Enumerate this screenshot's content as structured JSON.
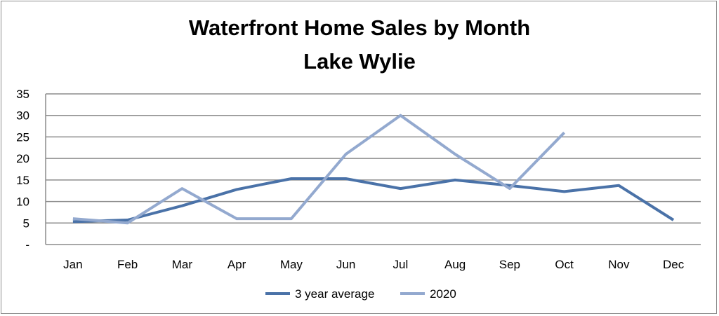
{
  "chart_data": {
    "type": "line",
    "title": "Waterfront Home Sales by Month",
    "subtitle": "Lake Wylie",
    "categories": [
      "Jan",
      "Feb",
      "Mar",
      "Apr",
      "May",
      "Jun",
      "Jul",
      "Aug",
      "Sep",
      "Oct",
      "Nov",
      "Dec"
    ],
    "y_tick_labels": [
      "-",
      "5",
      "10",
      "15",
      "20",
      "25",
      "30",
      "35"
    ],
    "ylim": [
      0,
      35
    ],
    "grid": true,
    "legend_position": "bottom",
    "series": [
      {
        "name": "3 year average",
        "color": "#4a72a8",
        "values": [
          5.3,
          5.7,
          9.0,
          12.8,
          15.3,
          15.3,
          13.0,
          15.0,
          13.7,
          12.3,
          13.7,
          5.7
        ]
      },
      {
        "name": "2020",
        "color": "#93a9cf",
        "values": [
          6,
          5,
          13,
          6,
          6,
          21,
          30,
          21,
          13,
          26,
          null,
          null
        ]
      }
    ]
  }
}
